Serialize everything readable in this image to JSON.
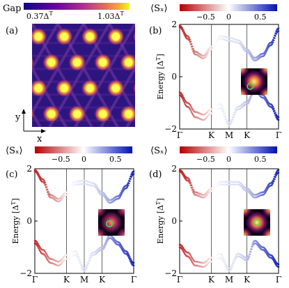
{
  "colors": {
    "gap_low": "#2d0f70",
    "gap_high": "#ffff5a",
    "sx_neg": "#c81414",
    "sx_zero": "#ffffff",
    "sx_pos": "#1428c8",
    "inset_ring": "#44dd44"
  },
  "chart_data": [
    {
      "panel": "(a)",
      "type": "heatmap",
      "title": "Gap",
      "colorbar": {
        "min_label": "0.37Δ",
        "max_label": "1.03Δ",
        "sup": "T",
        "colormap": "plasma"
      },
      "axes": {
        "x": "x",
        "y": "y"
      },
      "pattern": "kagome lattice of bright spots (triangular arrangement, 4 columns x 4 rows)"
    },
    {
      "panel": "(b)",
      "type": "line",
      "colorbar": {
        "label": "⟨Sₓ⟩",
        "ticks": [
          "−0.5",
          "0",
          "0.5"
        ],
        "range": [
          -0.8,
          0.8
        ]
      },
      "ylabel": "Energy [Δ",
      "ylabel_sup": "T",
      "ylabel_close": "]",
      "ylim": [
        -2,
        2
      ],
      "yticks": [
        "2",
        "0",
        "−2"
      ],
      "xticks": [
        "Γ",
        "K",
        "M",
        "K",
        "Γ"
      ],
      "x_axis_positions": [
        0,
        0.32,
        0.5,
        0.68,
        1
      ],
      "x": [
        0,
        0.08,
        0.16,
        0.24,
        0.32,
        0.41,
        0.5,
        0.59,
        0.68,
        0.76,
        0.84,
        0.92,
        1
      ],
      "series": [
        {
          "values": [
            1.95,
            1.55,
            0.95,
            0.8,
            1.15,
            1.55,
            1.5,
            1.4,
            1.05,
            0.72,
            0.88,
            1.3,
            1.85
          ],
          "sx": [
            -0.7,
            -0.6,
            -0.4,
            -0.25,
            -0.05,
            0.05,
            0.1,
            0.1,
            0.2,
            0.3,
            0.45,
            0.6,
            0.7
          ]
        },
        {
          "values": [
            1.9,
            1.45,
            0.85,
            0.7,
            1.05,
            1.45,
            1.38,
            1.3,
            0.95,
            0.62,
            0.78,
            1.2,
            1.75
          ],
          "sx": [
            -0.7,
            -0.6,
            -0.4,
            -0.25,
            -0.05,
            0.05,
            0.1,
            0.1,
            0.2,
            0.3,
            0.45,
            0.6,
            0.7
          ]
        },
        {
          "values": [
            -0.6,
            -1.0,
            -1.35,
            -1.45,
            -1.25,
            -1.05,
            -1.75,
            -1.15,
            -0.95,
            -0.45,
            -0.7,
            -1.05,
            -1.55
          ],
          "sx": [
            -0.7,
            -0.55,
            -0.4,
            -0.25,
            -0.05,
            0.05,
            0.1,
            0.1,
            0.2,
            0.35,
            0.5,
            0.6,
            0.75
          ]
        },
        {
          "values": [
            -0.7,
            -1.15,
            -1.55,
            -1.65,
            -1.4,
            -1.2,
            -1.85,
            -1.25,
            -1.05,
            -0.55,
            -0.8,
            -1.15,
            -1.65
          ],
          "sx": [
            -0.7,
            -0.55,
            -0.4,
            -0.25,
            -0.05,
            0.05,
            0.1,
            0.1,
            0.2,
            0.35,
            0.5,
            0.6,
            0.75
          ]
        }
      ],
      "inset": {
        "ring": [
          0.35,
          0.68
        ]
      }
    },
    {
      "panel": "(c)",
      "type": "line",
      "colorbar": {
        "label": "⟨Sₓ⟩",
        "ticks": [
          "−0.5",
          "0",
          "0.5"
        ],
        "range": [
          -0.8,
          0.8
        ]
      },
      "ylabel": "Energy [Δ",
      "ylabel_sup": "T",
      "ylabel_close": "]",
      "ylim": [
        -2,
        2
      ],
      "yticks": [
        "2",
        "0",
        "−2"
      ],
      "xticks": [
        "Γ",
        "K",
        "M",
        "K",
        "Γ"
      ],
      "x_axis_positions": [
        0,
        0.32,
        0.5,
        0.68,
        1
      ],
      "x": [
        0,
        0.08,
        0.16,
        0.24,
        0.32,
        0.41,
        0.5,
        0.59,
        0.68,
        0.76,
        0.84,
        0.92,
        1
      ],
      "series": [
        {
          "values": [
            1.95,
            1.6,
            1.0,
            0.85,
            1.1,
            1.5,
            1.55,
            1.45,
            1.1,
            0.8,
            0.95,
            1.35,
            1.9
          ],
          "sx": [
            -0.7,
            -0.6,
            -0.4,
            -0.25,
            -0.05,
            0.05,
            0.1,
            0.1,
            0.2,
            0.3,
            0.45,
            0.6,
            0.75
          ]
        },
        {
          "values": [
            1.9,
            1.5,
            0.9,
            0.75,
            1.0,
            1.4,
            1.42,
            1.35,
            1.0,
            0.7,
            0.85,
            1.25,
            1.8
          ],
          "sx": [
            -0.7,
            -0.6,
            -0.4,
            -0.25,
            -0.05,
            0.05,
            0.1,
            0.1,
            0.2,
            0.3,
            0.45,
            0.6,
            0.75
          ]
        },
        {
          "values": [
            -0.75,
            -1.1,
            -1.45,
            -1.55,
            -1.3,
            -1.15,
            -1.8,
            -1.2,
            -1.0,
            -0.55,
            -0.8,
            -1.15,
            -1.6
          ],
          "sx": [
            -0.7,
            -0.55,
            -0.4,
            -0.25,
            -0.05,
            0.05,
            0.1,
            0.1,
            0.2,
            0.35,
            0.5,
            0.6,
            0.75
          ]
        },
        {
          "values": [
            -0.85,
            -1.25,
            -1.6,
            -1.7,
            -1.45,
            -1.3,
            -1.9,
            -1.3,
            -1.1,
            -0.65,
            -0.9,
            -1.25,
            -1.7
          ],
          "sx": [
            -0.7,
            -0.55,
            -0.4,
            -0.25,
            -0.05,
            0.05,
            0.1,
            0.1,
            0.2,
            0.35,
            0.5,
            0.6,
            0.75
          ]
        }
      ],
      "inset": {
        "ring": [
          0.42,
          0.55
        ]
      }
    },
    {
      "panel": "(d)",
      "type": "line",
      "colorbar": {
        "label": "⟨Sₓ⟩",
        "ticks": [
          "−0.5",
          "0",
          "0.5"
        ],
        "range": [
          -0.8,
          0.8
        ]
      },
      "ylabel": "Energy [Δ",
      "ylabel_sup": "T",
      "ylabel_close": "]",
      "ylim": [
        -2,
        2
      ],
      "yticks": [
        "2",
        "0",
        "−2"
      ],
      "xticks": [
        "Γ",
        "K",
        "M",
        "K",
        "Γ"
      ],
      "x_axis_positions": [
        0,
        0.32,
        0.5,
        0.68,
        1
      ],
      "x": [
        0,
        0.08,
        0.16,
        0.24,
        0.32,
        0.41,
        0.5,
        0.59,
        0.68,
        0.76,
        0.84,
        0.92,
        1
      ],
      "series": [
        {
          "values": [
            1.95,
            1.65,
            1.1,
            1.0,
            1.25,
            1.5,
            1.5,
            1.5,
            1.25,
            1.0,
            1.1,
            1.45,
            1.95
          ],
          "sx": [
            -0.7,
            -0.6,
            -0.4,
            -0.25,
            -0.05,
            0.05,
            0.1,
            0.1,
            0.2,
            0.3,
            0.45,
            0.6,
            0.75
          ]
        },
        {
          "values": [
            1.9,
            1.55,
            1.0,
            0.9,
            1.15,
            1.4,
            1.4,
            1.4,
            1.15,
            0.9,
            1.0,
            1.35,
            1.85
          ],
          "sx": [
            -0.7,
            -0.6,
            -0.4,
            -0.25,
            -0.05,
            0.05,
            0.1,
            0.1,
            0.2,
            0.3,
            0.45,
            0.6,
            0.75
          ]
        },
        {
          "values": [
            -0.9,
            -1.2,
            -1.55,
            -1.6,
            -1.4,
            -1.25,
            -1.8,
            -1.25,
            -1.4,
            -0.75,
            -1.0,
            -1.3,
            -1.65
          ],
          "sx": [
            -0.7,
            -0.55,
            -0.4,
            -0.25,
            -0.05,
            0.05,
            0.1,
            0.1,
            0.2,
            0.35,
            0.5,
            0.6,
            0.75
          ]
        },
        {
          "values": [
            -1.0,
            -1.35,
            -1.7,
            -1.75,
            -1.55,
            -1.4,
            -1.9,
            -1.35,
            -1.5,
            -0.85,
            -1.1,
            -1.4,
            -1.75
          ],
          "sx": [
            -0.7,
            -0.55,
            -0.4,
            -0.25,
            -0.05,
            0.05,
            0.1,
            0.1,
            0.2,
            0.35,
            0.5,
            0.6,
            0.75
          ]
        }
      ],
      "inset": {
        "ring": [
          0.5,
          0.5
        ]
      }
    }
  ]
}
